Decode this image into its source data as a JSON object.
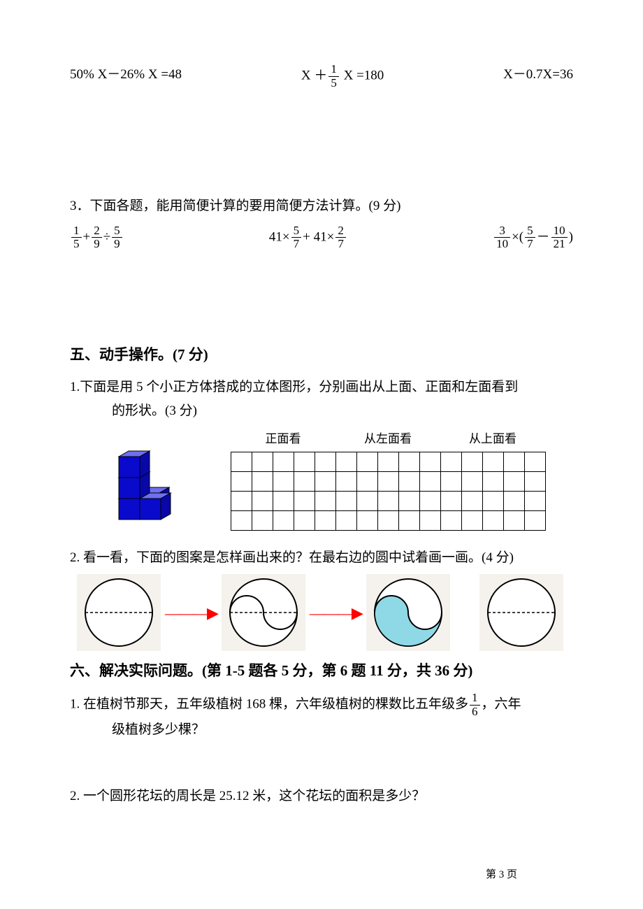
{
  "equations_row": {
    "eq1": "50% X－26% X =48",
    "eq2_pre": "X ＋",
    "eq2_frac_num": "1",
    "eq2_frac_den": "5",
    "eq2_post": " X =180",
    "eq3": "X－0.7X=36"
  },
  "q3_head": "3．下面各题，能用简便计算的要用简便方法计算。(9 分)",
  "q3_a": {
    "f1n": "1",
    "f1d": "5",
    "op1": "+",
    "f2n": "2",
    "f2d": "9",
    "op2": "÷",
    "f3n": "5",
    "f3d": "9"
  },
  "q3_b": {
    "pre": "41×",
    "f1n": "5",
    "f1d": "7",
    "mid": "+ 41×",
    "f2n": "2",
    "f2d": "7"
  },
  "q3_c": {
    "f1n": "3",
    "f1d": "10",
    "op1": "×(",
    "f2n": "5",
    "f2d": "7",
    "op2": "－",
    "f3n": "10",
    "f3d": "21",
    "post": ")"
  },
  "sec5_title": "五、动手操作。(7 分)",
  "q51_text": "1.下面是用 5 个小正方体搭成的立体图形，分别画出从上面、正面和左面看到",
  "q51_text2": "的形状。(3 分)",
  "grid_labels": {
    "a": "正面看",
    "b": "从左面看",
    "c": "从上面看"
  },
  "q52_text": "2. 看一看，下面的图案是怎样画出来的？在最右边的圆中试着画一画。(4 分)",
  "sec6_title": "六、解决实际问题。(第 1-5 题各 5 分，第 6 题 11 分，共 36 分)",
  "q61_pre": "1. 在植树节那天，五年级植树 168 棵，六年级植树的棵数比五年级多",
  "q61_frac_num": "1",
  "q61_frac_den": "6",
  "q61_post": "，六年",
  "q61_line2": "级植树多少棵？",
  "q62_text": "2. 一个圆形花坛的周长是 25.12 米，这个花坛的面积是多少？",
  "page_num": "第 3 页",
  "colors": {
    "cube_face": "#0a0acc",
    "cube_top": "#6f6ff0",
    "cube_side": "#0808a8",
    "arrow": "#ff0000",
    "yin_fill": "#8fd9e6",
    "circle_bg": "#f5f2ed"
  },
  "grid": {
    "cols": 15,
    "rows": 4
  }
}
